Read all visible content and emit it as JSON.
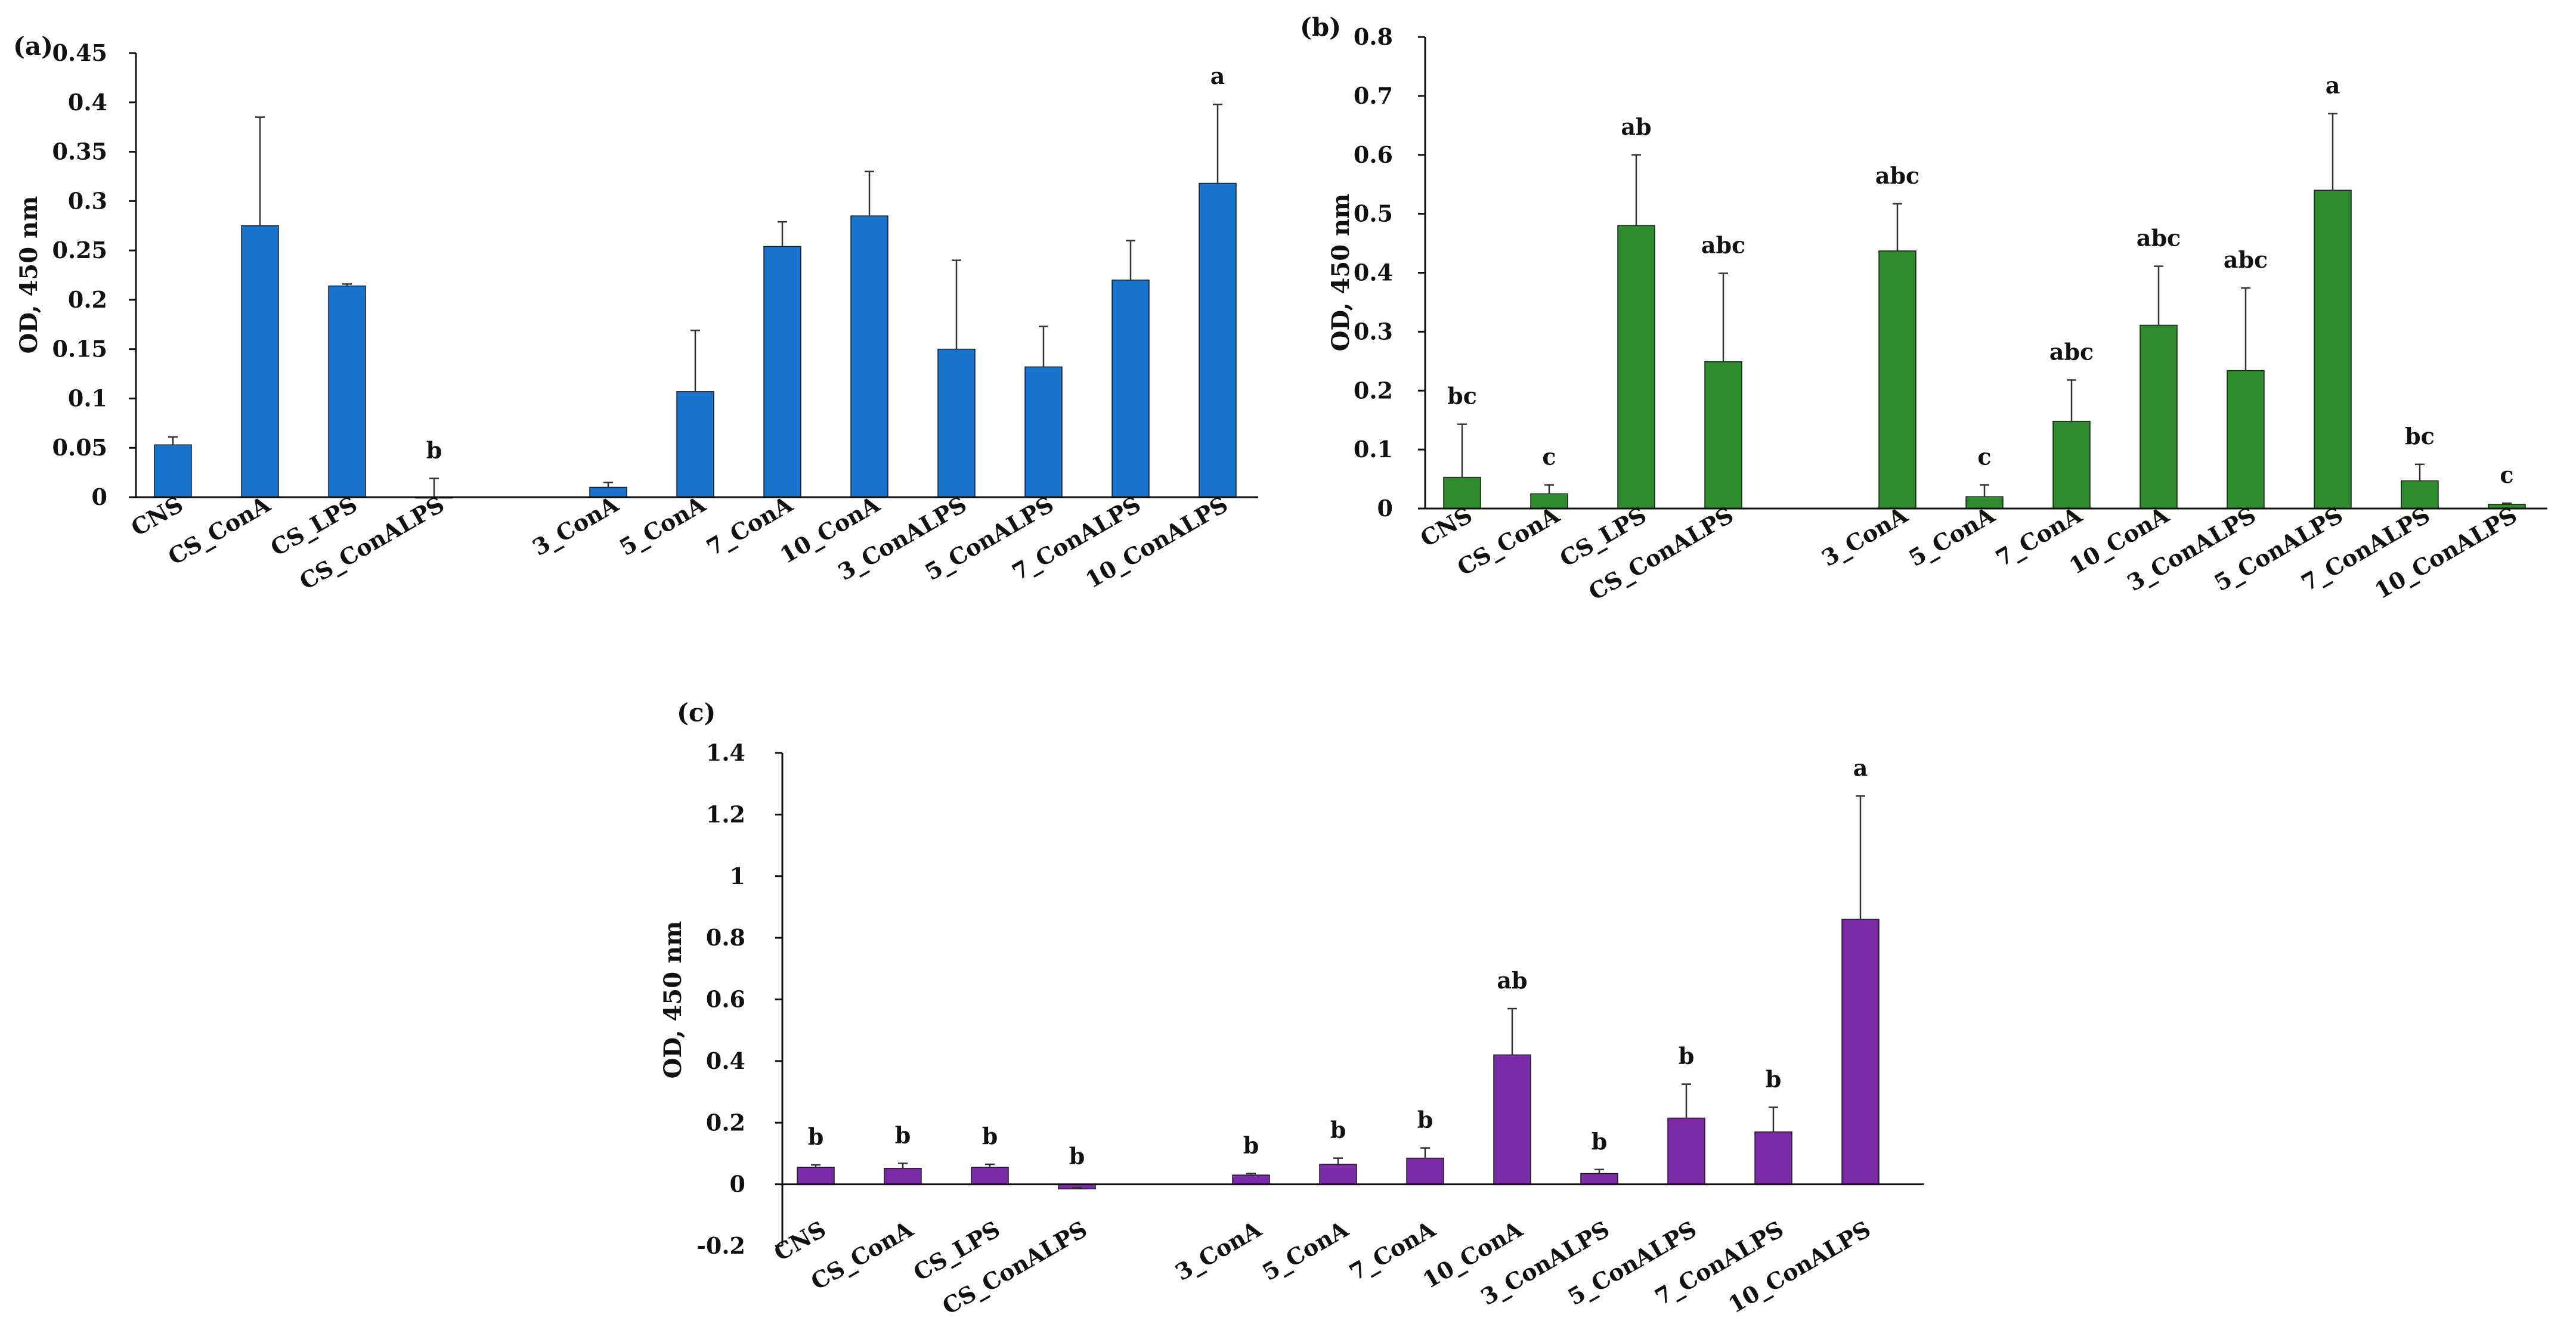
{
  "chart_data": [
    {
      "panel": "(a)",
      "type": "bar",
      "ylabel": "OD, 450 nm",
      "ylim": [
        0,
        0.45
      ],
      "yticks": [
        0,
        0.05,
        0.1,
        0.15,
        0.2,
        0.25,
        0.3,
        0.35,
        0.4,
        0.45
      ],
      "ytick_labels": [
        "0",
        "0.05",
        "0.1",
        "0.15",
        "0.2",
        "0.25",
        "0.3",
        "0.35",
        "0.4",
        "0.45"
      ],
      "color": "#1874CD",
      "categories": [
        "CNS",
        "CS_ConA",
        "CS_LPS",
        "CS_ConALPS",
        "3_ConA",
        "5_ConA",
        "7_ConA",
        "10_ConA",
        "3_ConALPS",
        "5_ConALPS",
        "7_ConALPS",
        "10_ConALPS"
      ],
      "values": [
        0.053,
        0.275,
        0.214,
        0.0,
        0.01,
        0.107,
        0.254,
        0.285,
        0.15,
        0.132,
        0.22,
        0.318
      ],
      "errors": [
        0.008,
        0.11,
        0.002,
        0.019,
        0.005,
        0.062,
        0.025,
        0.045,
        0.09,
        0.041,
        0.04,
        0.08
      ],
      "significance": [
        "",
        "",
        "",
        "b",
        "",
        "",
        "",
        "",
        "",
        "",
        "",
        "a"
      ]
    },
    {
      "panel": "(b)",
      "type": "bar",
      "ylabel": "OD, 450 nm",
      "ylim": [
        0,
        0.8
      ],
      "yticks": [
        0,
        0.1,
        0.2,
        0.3,
        0.4,
        0.5,
        0.6,
        0.7,
        0.8
      ],
      "ytick_labels": [
        "0",
        "0.1",
        "0.2",
        "0.3",
        "0.4",
        "0.5",
        "0.6",
        "0.7",
        "0.8"
      ],
      "color": "#2E8B2E",
      "categories": [
        "CNS",
        "CS_ConA",
        "CS_LPS",
        "CS_ConALPS",
        "3_ConA",
        "5_ConA",
        "7_ConA",
        "10_ConA",
        "3_ConALPS",
        "5_ConALPS",
        "7_ConALPS",
        "10_ConALPS"
      ],
      "values": [
        0.053,
        0.025,
        0.48,
        0.249,
        0.437,
        0.02,
        0.148,
        0.311,
        0.234,
        0.54,
        0.047,
        0.007
      ],
      "errors": [
        0.09,
        0.015,
        0.12,
        0.15,
        0.08,
        0.02,
        0.07,
        0.1,
        0.14,
        0.13,
        0.028,
        0.002
      ],
      "significance": [
        "bc",
        "c",
        "ab",
        "abc",
        "abc",
        "c",
        "abc",
        "abc",
        "abc",
        "a",
        "bc",
        "c"
      ]
    },
    {
      "panel": "(c)",
      "type": "bar",
      "ylabel": "OD, 450 nm",
      "ylim": [
        -0.2,
        1.4
      ],
      "yticks": [
        -0.2,
        0,
        0.2,
        0.4,
        0.6,
        0.8,
        1,
        1.2,
        1.4
      ],
      "ytick_labels": [
        "-0.2",
        "0",
        "0.2",
        "0.4",
        "0.6",
        "0.8",
        "1",
        "1.2",
        "1.4"
      ],
      "color": "#7B2BA8",
      "categories": [
        "CNS",
        "CS_ConA",
        "CS_LPS",
        "CS_ConALPS",
        "3_ConA",
        "5_ConA",
        "7_ConA",
        "10_ConA",
        "3_ConALPS",
        "5_ConALPS",
        "7_ConALPS",
        "10_ConALPS"
      ],
      "values": [
        0.055,
        0.052,
        0.055,
        -0.015,
        0.03,
        0.065,
        0.085,
        0.42,
        0.035,
        0.215,
        0.17,
        0.86
      ],
      "errors": [
        0.008,
        0.016,
        0.01,
        0.004,
        0.005,
        0.02,
        0.033,
        0.15,
        0.013,
        0.11,
        0.08,
        0.4
      ],
      "significance": [
        "b",
        "b",
        "b",
        "b",
        "b",
        "b",
        "b",
        "ab",
        "b",
        "b",
        "b",
        "a"
      ]
    }
  ]
}
